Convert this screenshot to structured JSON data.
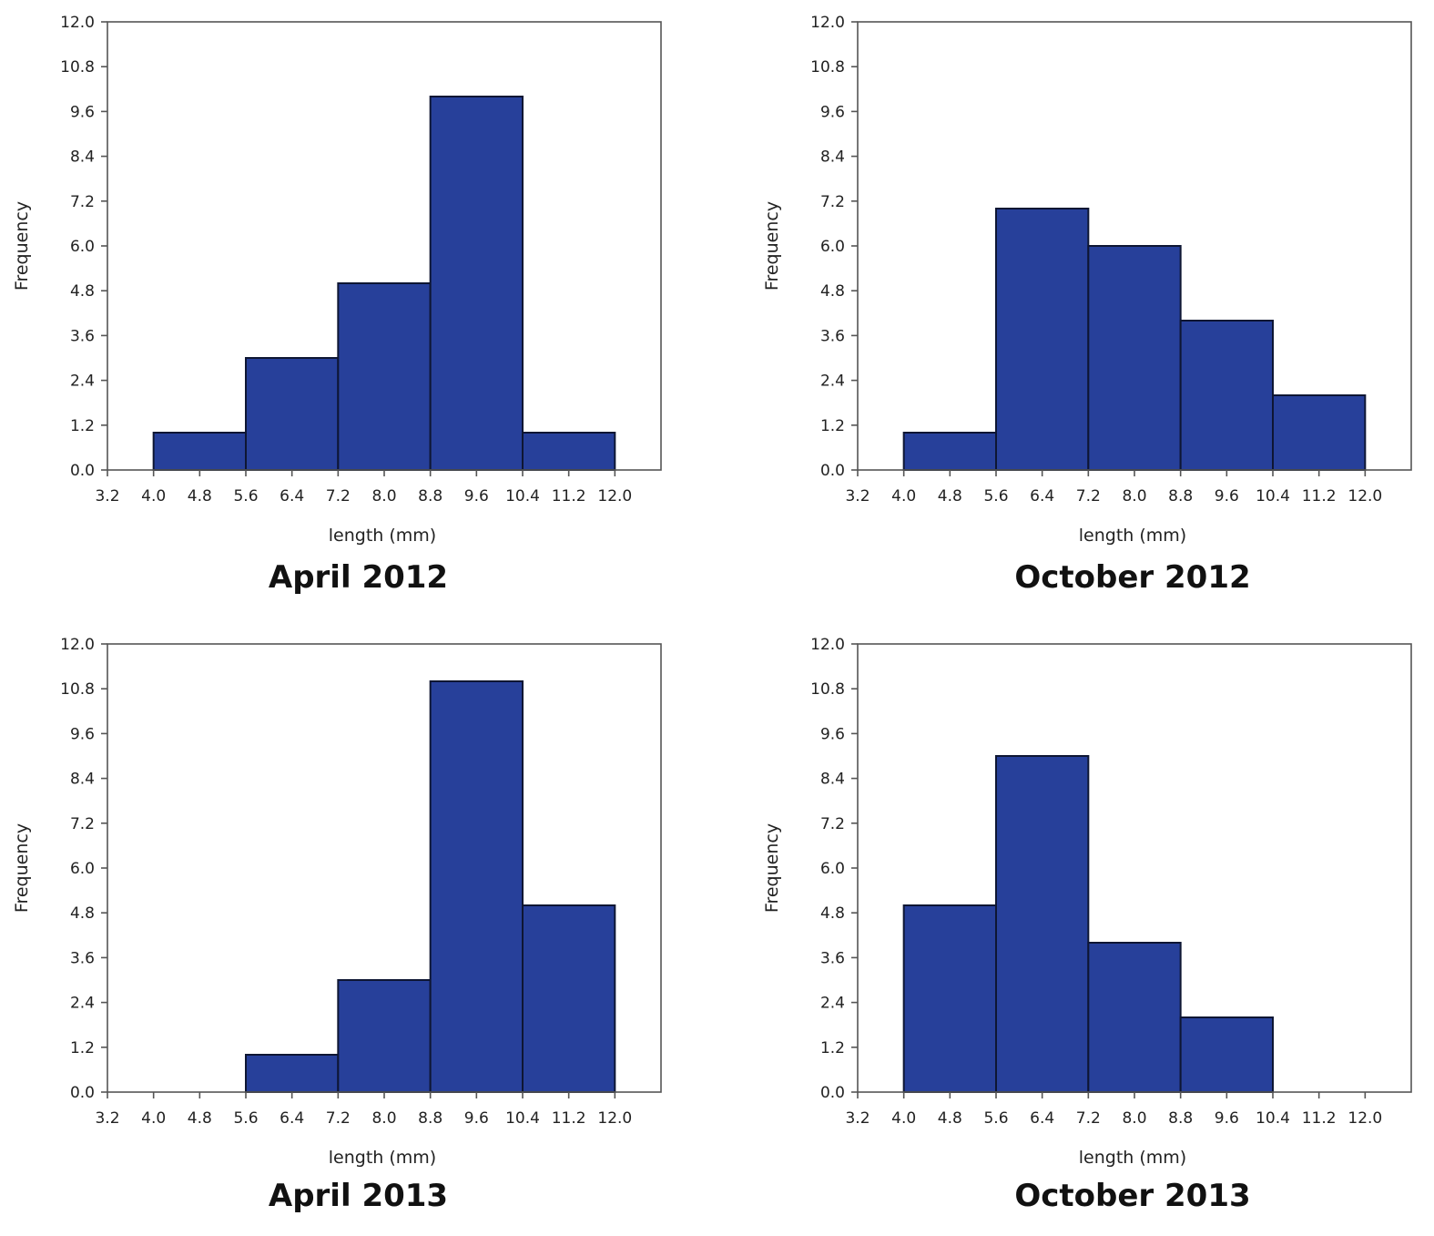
{
  "chart_data": [
    {
      "type": "bar",
      "title": "April 2012",
      "xlabel": "length (mm)",
      "ylabel": "Frequency",
      "xlim": [
        3.2,
        12.8
      ],
      "ylim": [
        0,
        12
      ],
      "xticks": [
        "3.2",
        "4.0",
        "4.8",
        "5.6",
        "6.4",
        "7.2",
        "8.0",
        "8.8",
        "9.6",
        "10.4",
        "11.2",
        "12.0"
      ],
      "yticks": [
        "0.0",
        "1.2",
        "2.4",
        "3.6",
        "4.8",
        "6.0",
        "7.2",
        "8.4",
        "9.6",
        "10.8",
        "12.0"
      ],
      "bins": [
        [
          4.0,
          5.6
        ],
        [
          5.6,
          7.2
        ],
        [
          7.2,
          8.8
        ],
        [
          8.8,
          10.4
        ],
        [
          10.4,
          12.0
        ]
      ],
      "values": [
        1,
        3,
        5,
        10,
        1
      ],
      "bar_color": "#27409a",
      "grid": false
    },
    {
      "type": "bar",
      "title": "October 2012",
      "xlabel": "length (mm)",
      "ylabel": "Frequency",
      "xlim": [
        3.2,
        12.8
      ],
      "ylim": [
        0,
        12
      ],
      "xticks": [
        "3.2",
        "4.0",
        "4.8",
        "5.6",
        "6.4",
        "7.2",
        "8.0",
        "8.8",
        "9.6",
        "10.4",
        "11.2",
        "12.0"
      ],
      "yticks": [
        "0.0",
        "1.2",
        "2.4",
        "3.6",
        "4.8",
        "6.0",
        "7.2",
        "8.4",
        "9.6",
        "10.8",
        "12.0"
      ],
      "bins": [
        [
          4.0,
          5.6
        ],
        [
          5.6,
          7.2
        ],
        [
          7.2,
          8.8
        ],
        [
          8.8,
          10.4
        ],
        [
          10.4,
          12.0
        ]
      ],
      "values": [
        1,
        7,
        6,
        4,
        2
      ],
      "bar_color": "#27409a",
      "grid": false
    },
    {
      "type": "bar",
      "title": "April 2013",
      "xlabel": "length (mm)",
      "ylabel": "Frequency",
      "xlim": [
        3.2,
        12.8
      ],
      "ylim": [
        0,
        12
      ],
      "xticks": [
        "3.2",
        "4.0",
        "4.8",
        "5.6",
        "6.4",
        "7.2",
        "8.0",
        "8.8",
        "9.6",
        "10.4",
        "11.2",
        "12.0"
      ],
      "yticks": [
        "0.0",
        "1.2",
        "2.4",
        "3.6",
        "4.8",
        "6.0",
        "7.2",
        "8.4",
        "9.6",
        "10.8",
        "12.0"
      ],
      "bins": [
        [
          5.6,
          7.2
        ],
        [
          7.2,
          8.8
        ],
        [
          8.8,
          10.4
        ],
        [
          10.4,
          12.0
        ]
      ],
      "values": [
        1,
        3,
        11,
        5
      ],
      "bar_color": "#27409a",
      "grid": false
    },
    {
      "type": "bar",
      "title": "October 2013",
      "xlabel": "length (mm)",
      "ylabel": "Frequency",
      "xlim": [
        3.2,
        12.8
      ],
      "ylim": [
        0,
        12
      ],
      "xticks": [
        "3.2",
        "4.0",
        "4.8",
        "5.6",
        "6.4",
        "7.2",
        "8.0",
        "8.8",
        "9.6",
        "10.4",
        "11.2",
        "12.0"
      ],
      "yticks": [
        "0.0",
        "1.2",
        "2.4",
        "3.6",
        "4.8",
        "6.0",
        "7.2",
        "8.4",
        "9.6",
        "10.8",
        "12.0"
      ],
      "bins": [
        [
          4.0,
          5.6
        ],
        [
          5.6,
          7.2
        ],
        [
          7.2,
          8.8
        ],
        [
          8.8,
          10.4
        ]
      ],
      "values": [
        5,
        9,
        4,
        2
      ],
      "bar_color": "#27409a",
      "grid": false
    }
  ]
}
